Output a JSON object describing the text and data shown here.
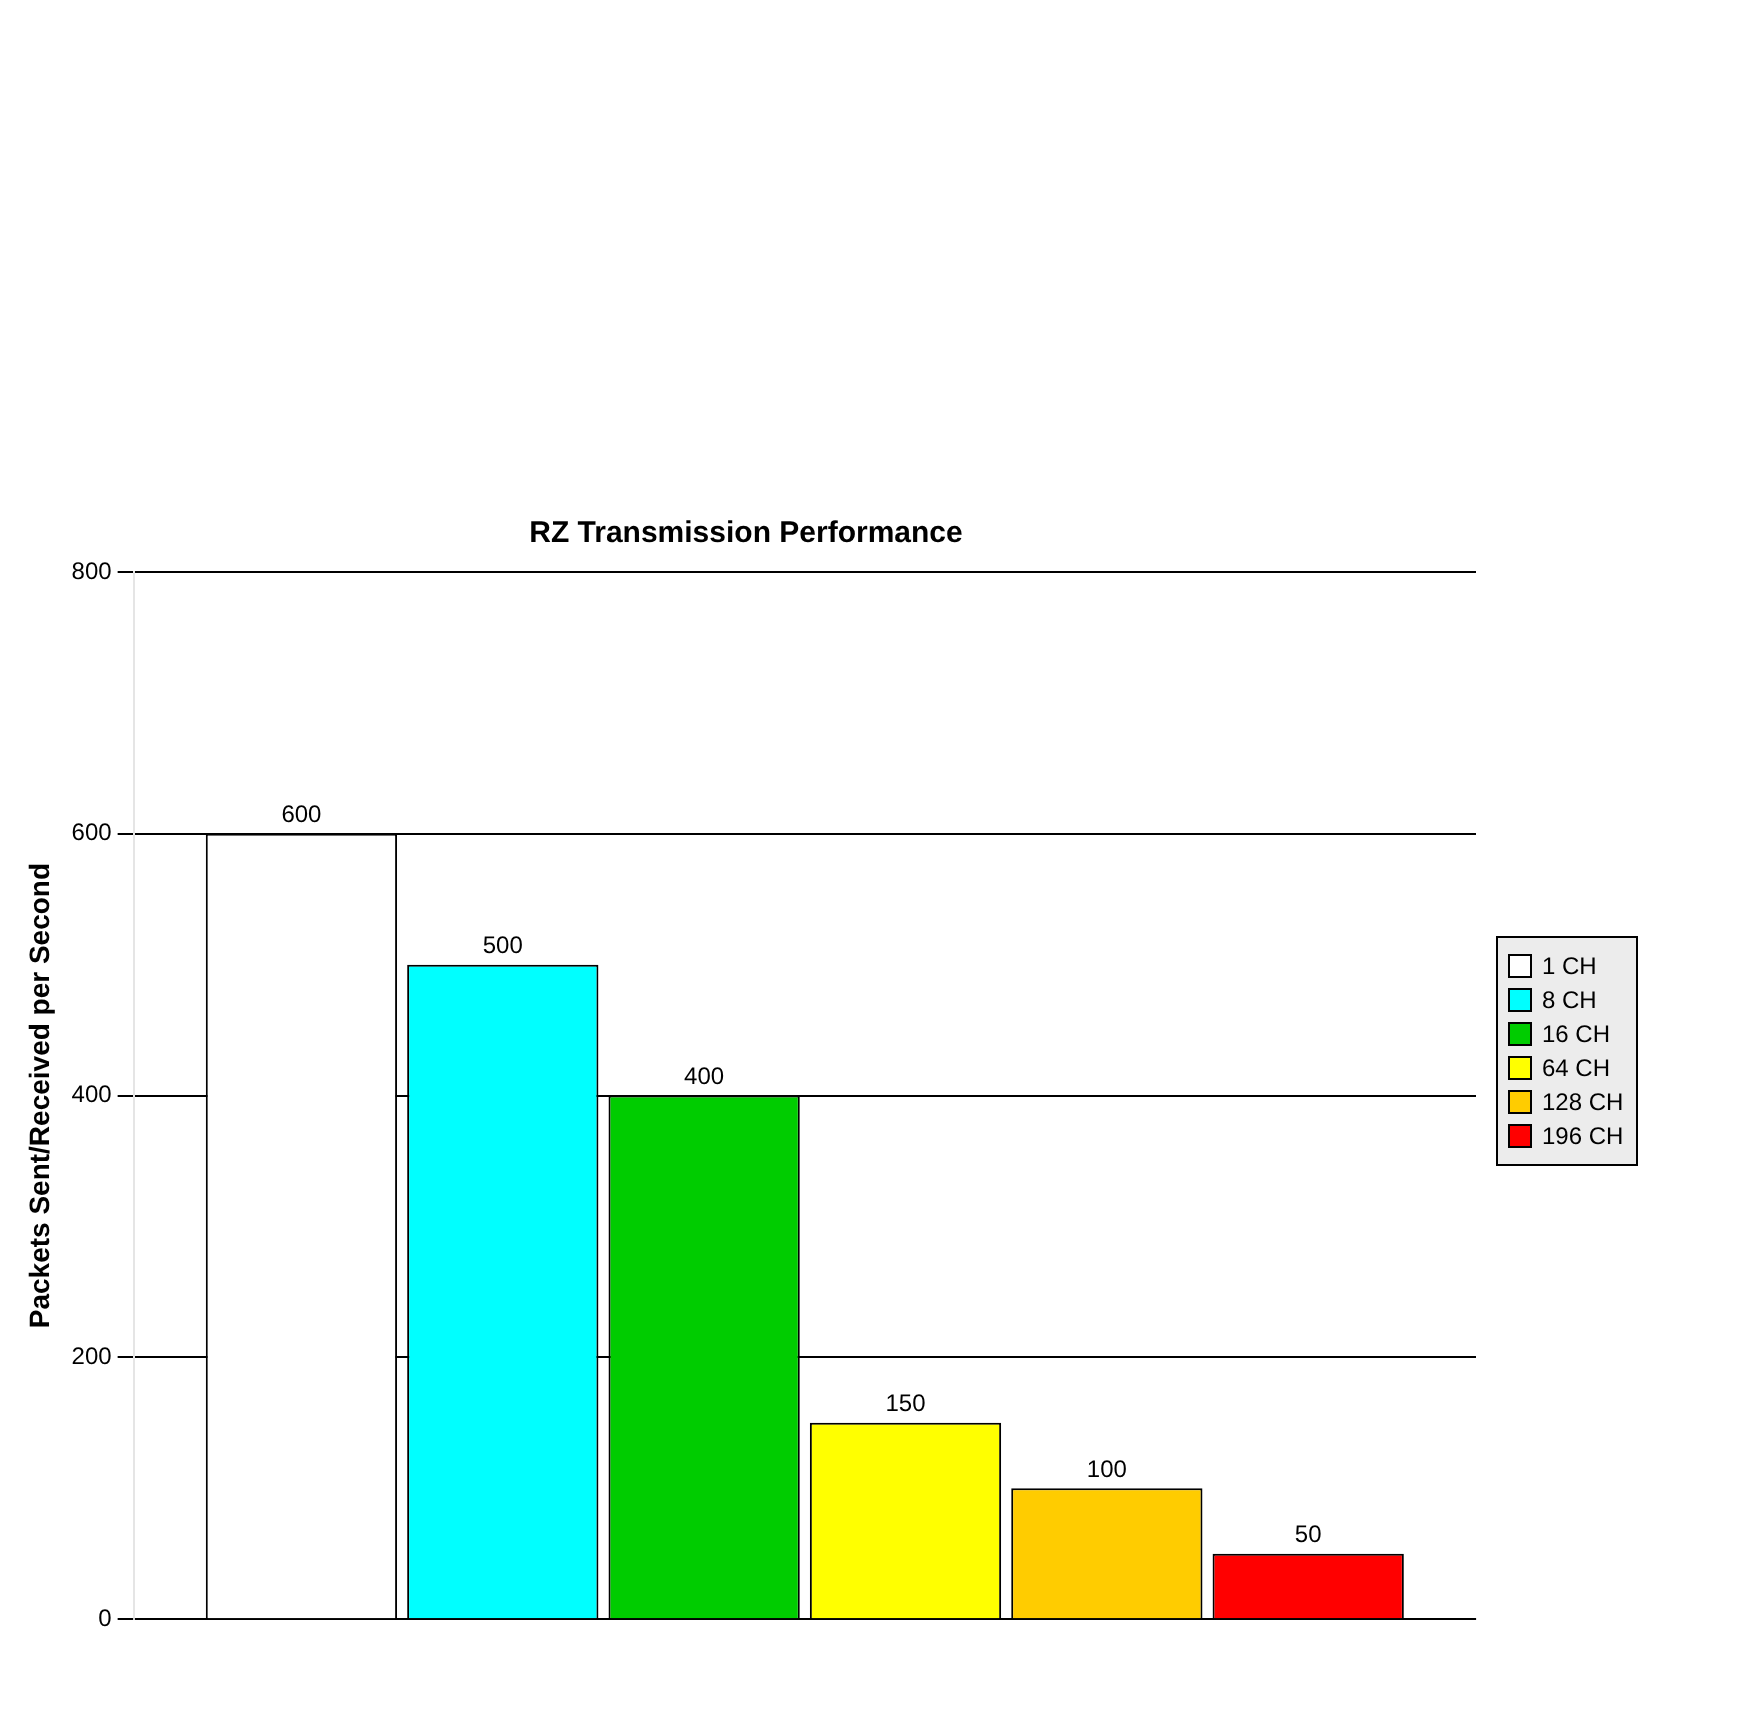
{
  "chart_data": {
    "type": "bar",
    "title": "RZ Transmission Performance",
    "ylabel": "Packets Sent/Received per Second",
    "categories": [
      null
    ],
    "series": [
      {
        "name": "1 CH",
        "color": "#ffffff",
        "values": [
          600
        ]
      },
      {
        "name": "8 CH",
        "color": "#00ffff",
        "values": [
          500
        ]
      },
      {
        "name": "16 CH",
        "color": "#00cc00",
        "values": [
          400
        ]
      },
      {
        "name": "64 CH",
        "color": "#ffff00",
        "values": [
          150
        ]
      },
      {
        "name": "128 CH",
        "color": "#ffcc00",
        "values": [
          100
        ]
      },
      {
        "name": "196 CH",
        "color": "#ff0000",
        "values": [
          50
        ]
      }
    ],
    "ylim": [
      0,
      800
    ],
    "yticks": [
      0,
      200,
      400,
      600,
      800
    ],
    "grid": "y",
    "legend": "right",
    "data_labels": true
  }
}
